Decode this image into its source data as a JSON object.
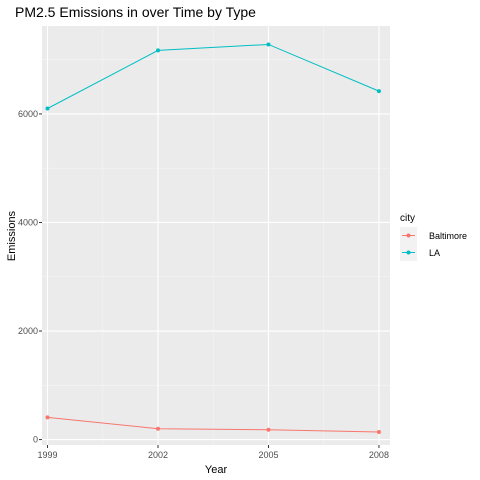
{
  "chart_data": {
    "type": "line",
    "title": "PM2.5 Emissions in over Time by Type",
    "xlabel": "Year",
    "ylabel": "Emissions",
    "x": [
      1999,
      2002,
      2005,
      2008
    ],
    "x_ticks": [
      "1999",
      "2002",
      "2005",
      "2008"
    ],
    "y_ticks": [
      "0",
      "2000",
      "4000",
      "6000"
    ],
    "y_tick_values": [
      0,
      2000,
      4000,
      6000
    ],
    "xlim": [
      1998.85,
      2008.3
    ],
    "ylim": [
      -100,
      7620
    ],
    "grid": true,
    "legend": {
      "title": "city",
      "position": "right"
    },
    "series": [
      {
        "name": "Baltimore",
        "color": "#F8766D",
        "values": [
          410,
          200,
          180,
          140
        ]
      },
      {
        "name": "LA",
        "color": "#00BFC4",
        "values": [
          6100,
          7170,
          7280,
          6420
        ]
      }
    ]
  }
}
